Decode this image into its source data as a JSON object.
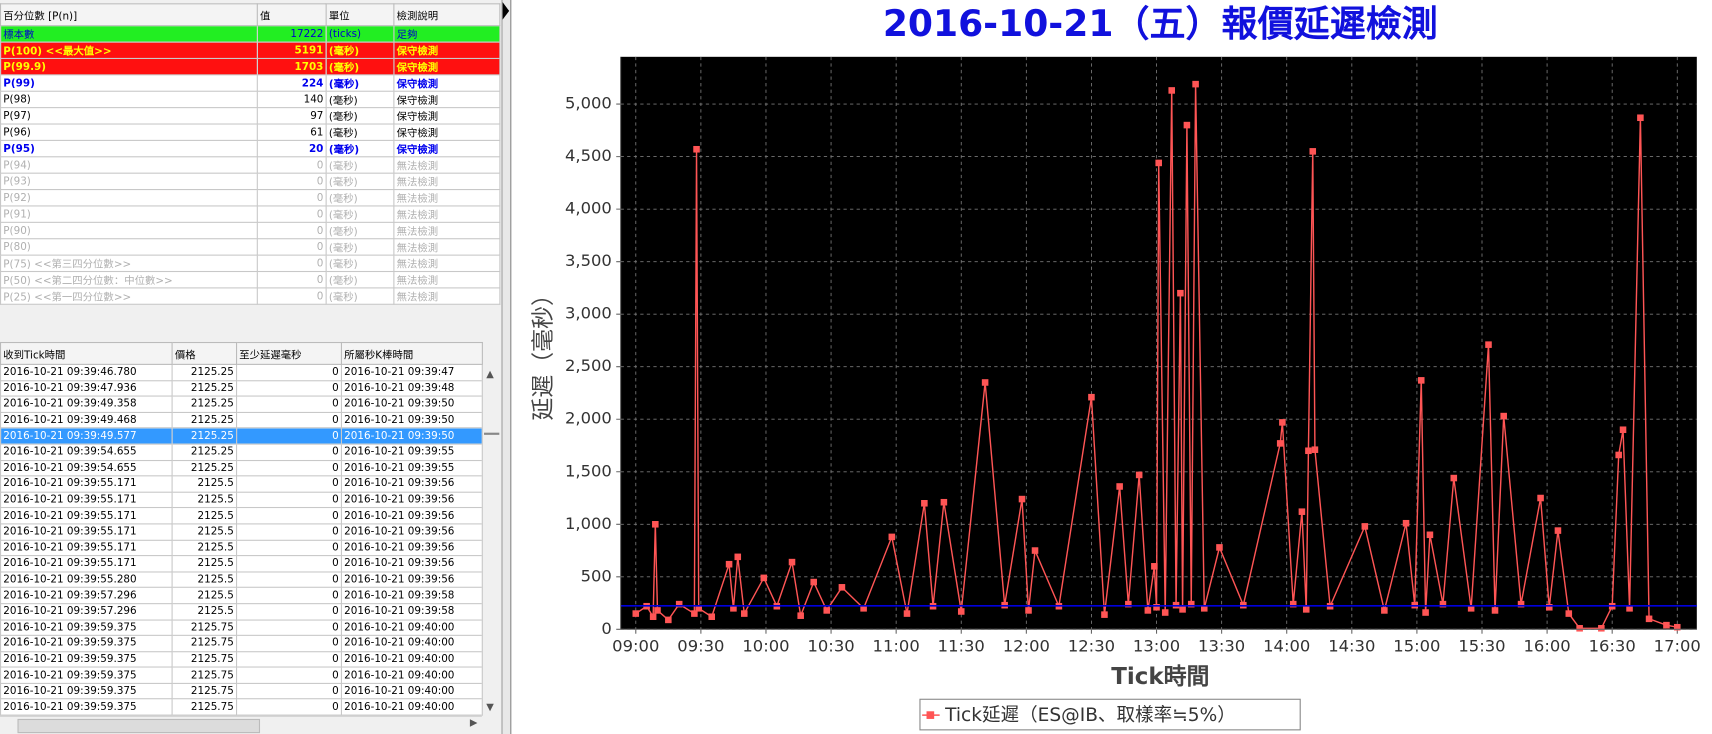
{
  "percentile_table": {
    "header": [
      "百分位數 [P(n)]",
      "值",
      "單位",
      "檢測說明"
    ],
    "rows": [
      {
        "cells": [
          "標本數",
          17222,
          "(ticks)",
          "足夠"
        ],
        "bg": "#22ee22",
        "fg": "#0000cc",
        "bold": false
      },
      {
        "cells": [
          "P(100)  <<最大值>>",
          5191,
          "(毫秒)",
          "保守檢測"
        ],
        "bg": "#ff1010",
        "fg": "#ffff00",
        "bold": true
      },
      {
        "cells": [
          "P(99.9)",
          1703,
          "(毫秒)",
          "保守檢測"
        ],
        "bg": "#ff1010",
        "fg": "#ffff00",
        "bold": true
      },
      {
        "cells": [
          "P(99)",
          224,
          "(毫秒)",
          "保守檢測"
        ],
        "bg": "#ffffff",
        "fg": "#0000ee",
        "bold": true
      },
      {
        "cells": [
          "P(98)",
          140,
          "(毫秒)",
          "保守檢測"
        ],
        "bg": "#ffffff",
        "fg": "#000000",
        "bold": false
      },
      {
        "cells": [
          "P(97)",
          97,
          "(毫秒)",
          "保守檢測"
        ],
        "bg": "#ffffff",
        "fg": "#000000",
        "bold": false
      },
      {
        "cells": [
          "P(96)",
          61,
          "(毫秒)",
          "保守檢測"
        ],
        "bg": "#ffffff",
        "fg": "#000000",
        "bold": false
      },
      {
        "cells": [
          "P(95)",
          20,
          "(毫秒)",
          "保守檢測"
        ],
        "bg": "#ffffff",
        "fg": "#0000ee",
        "bold": true
      },
      {
        "cells": [
          "P(94)",
          0,
          "(毫秒)",
          "無法檢測"
        ],
        "bg": "#ffffff",
        "fg": "#b0b0b0",
        "bold": false
      },
      {
        "cells": [
          "P(93)",
          0,
          "(毫秒)",
          "無法檢測"
        ],
        "bg": "#ffffff",
        "fg": "#b0b0b0",
        "bold": false
      },
      {
        "cells": [
          "P(92)",
          0,
          "(毫秒)",
          "無法檢測"
        ],
        "bg": "#ffffff",
        "fg": "#b0b0b0",
        "bold": false
      },
      {
        "cells": [
          "P(91)",
          0,
          "(毫秒)",
          "無法檢測"
        ],
        "bg": "#ffffff",
        "fg": "#b0b0b0",
        "bold": false
      },
      {
        "cells": [
          "P(90)",
          0,
          "(毫秒)",
          "無法檢測"
        ],
        "bg": "#ffffff",
        "fg": "#b0b0b0",
        "bold": false
      },
      {
        "cells": [
          "P(80)",
          0,
          "(毫秒)",
          "無法檢測"
        ],
        "bg": "#ffffff",
        "fg": "#b0b0b0",
        "bold": false
      },
      {
        "cells": [
          "P(75)  <<第三四分位數>>",
          0,
          "(毫秒)",
          "無法檢測"
        ],
        "bg": "#ffffff",
        "fg": "#b0b0b0",
        "bold": false
      },
      {
        "cells": [
          "P(50)  <<第二四分位數：中位數>>",
          0,
          "(毫秒)",
          "無法檢測"
        ],
        "bg": "#ffffff",
        "fg": "#b0b0b0",
        "bold": false
      },
      {
        "cells": [
          "P(25)  <<第一四分位數>>",
          0,
          "(毫秒)",
          "無法檢測"
        ],
        "bg": "#ffffff",
        "fg": "#b0b0b0",
        "bold": false
      }
    ]
  },
  "tick_table": {
    "header": [
      "收到Tick時間",
      "價格",
      "至少延遲毫秒",
      "所屬秒K棒時間"
    ],
    "selected_row": 4,
    "rows": [
      [
        "2016-10-21 09:39:46.780",
        2125.25,
        0,
        "2016-10-21 09:39:47"
      ],
      [
        "2016-10-21 09:39:47.936",
        2125.25,
        0,
        "2016-10-21 09:39:48"
      ],
      [
        "2016-10-21 09:39:49.358",
        2125.25,
        0,
        "2016-10-21 09:39:50"
      ],
      [
        "2016-10-21 09:39:49.468",
        2125.25,
        0,
        "2016-10-21 09:39:50"
      ],
      [
        "2016-10-21 09:39:49.577",
        2125.25,
        0,
        "2016-10-21 09:39:50"
      ],
      [
        "2016-10-21 09:39:54.655",
        2125.25,
        0,
        "2016-10-21 09:39:55"
      ],
      [
        "2016-10-21 09:39:54.655",
        2125.25,
        0,
        "2016-10-21 09:39:55"
      ],
      [
        "2016-10-21 09:39:55.171",
        2125.5,
        0,
        "2016-10-21 09:39:56"
      ],
      [
        "2016-10-21 09:39:55.171",
        2125.5,
        0,
        "2016-10-21 09:39:56"
      ],
      [
        "2016-10-21 09:39:55.171",
        2125.5,
        0,
        "2016-10-21 09:39:56"
      ],
      [
        "2016-10-21 09:39:55.171",
        2125.5,
        0,
        "2016-10-21 09:39:56"
      ],
      [
        "2016-10-21 09:39:55.171",
        2125.5,
        0,
        "2016-10-21 09:39:56"
      ],
      [
        "2016-10-21 09:39:55.171",
        2125.5,
        0,
        "2016-10-21 09:39:56"
      ],
      [
        "2016-10-21 09:39:55.280",
        2125.5,
        0,
        "2016-10-21 09:39:56"
      ],
      [
        "2016-10-21 09:39:57.296",
        2125.5,
        0,
        "2016-10-21 09:39:58"
      ],
      [
        "2016-10-21 09:39:57.296",
        2125.5,
        0,
        "2016-10-21 09:39:58"
      ],
      [
        "2016-10-21 09:39:59.375",
        2125.75,
        0,
        "2016-10-21 09:40:00"
      ],
      [
        "2016-10-21 09:39:59.375",
        2125.75,
        0,
        "2016-10-21 09:40:00"
      ],
      [
        "2016-10-21 09:39:59.375",
        2125.75,
        0,
        "2016-10-21 09:40:00"
      ],
      [
        "2016-10-21 09:39:59.375",
        2125.75,
        0,
        "2016-10-21 09:40:00"
      ],
      [
        "2016-10-21 09:39:59.375",
        2125.75,
        0,
        "2016-10-21 09:40:00"
      ],
      [
        "2016-10-21 09:39:59.375",
        2125.75,
        0,
        "2016-10-21 09:40:00"
      ]
    ]
  },
  "chart_data": {
    "type": "line",
    "title": "2016-10-21（五）報價延遲檢測",
    "x_label": "Tick時間",
    "y_label": "延遲（毫秒）",
    "xlim": [
      "08:53",
      "17:09"
    ],
    "xticks": [
      "09:00",
      "09:30",
      "10:00",
      "10:30",
      "11:00",
      "11:30",
      "12:00",
      "12:30",
      "13:00",
      "13:30",
      "14:00",
      "14:30",
      "15:00",
      "15:30",
      "16:00",
      "16:30",
      "17:00"
    ],
    "ylim": [
      0,
      5450
    ],
    "yticks": [
      0,
      500,
      {
        "value": 1000,
        "label": "1,000"
      },
      {
        "value": 1500,
        "label": "1,500"
      },
      {
        "value": 2000,
        "label": "2,000"
      },
      {
        "value": 2500,
        "label": "2,500"
      },
      {
        "value": 3000,
        "label": "3,000"
      },
      {
        "value": 3500,
        "label": "3,500"
      },
      {
        "value": 4000,
        "label": "4,000"
      },
      {
        "value": 4500,
        "label": "4,500"
      },
      {
        "value": 5000,
        "label": "5,000"
      }
    ],
    "grid": true,
    "background": "#000000",
    "reference_line": {
      "value": 224,
      "color": "#0000dd"
    },
    "x": [
      "09:00",
      "09:05",
      "09:08",
      "09:09",
      "09:10",
      "09:15",
      "09:20",
      "09:27",
      "09:28",
      "09:29",
      "09:35",
      "09:43",
      "09:45",
      "09:47",
      "09:50",
      "09:59",
      "10:05",
      "10:12",
      "10:16",
      "10:22",
      "10:28",
      "10:35",
      "10:45",
      "10:58",
      "11:05",
      "11:13",
      "11:17",
      "11:22",
      "11:30",
      "11:41",
      "11:50",
      "11:58",
      "12:01",
      "12:04",
      "12:15",
      "12:30",
      "12:36",
      "12:43",
      "12:47",
      "12:52",
      "12:56",
      "12:59",
      "13:00",
      "13:01",
      "13:04",
      "13:07",
      "13:09",
      "13:11",
      "13:12",
      "13:14",
      "13:16",
      "13:18",
      "13:22",
      "13:29",
      "13:40",
      "13:57",
      "13:58",
      "14:03",
      "14:07",
      "14:09",
      "14:10",
      "14:12",
      "14:13",
      "14:20",
      "14:36",
      "14:45",
      "14:55",
      "14:59",
      "15:02",
      "15:04",
      "15:06",
      "15:12",
      "15:17",
      "15:25",
      "15:33",
      "15:36",
      "15:40",
      "15:48",
      "15:57",
      "16:01",
      "16:05",
      "16:10",
      "16:15",
      "16:25",
      "16:30",
      "16:33",
      "16:35",
      "16:38",
      "16:43",
      "16:47",
      "16:55",
      "17:00"
    ],
    "series": [
      {
        "name": "Tick延遲（ES@IB、取樣率≒5%）",
        "color": "#ff5555",
        "values": [
          150,
          220,
          120,
          1000,
          180,
          90,
          240,
          150,
          4570,
          200,
          120,
          620,
          200,
          690,
          150,
          490,
          220,
          640,
          130,
          450,
          180,
          400,
          200,
          880,
          150,
          1200,
          220,
          1210,
          170,
          2350,
          230,
          1240,
          180,
          750,
          220,
          2210,
          140,
          1360,
          240,
          1470,
          180,
          600,
          210,
          4440,
          160,
          5130,
          230,
          3200,
          190,
          4800,
          240,
          5190,
          200,
          780,
          230,
          1770,
          1970,
          240,
          1120,
          190,
          1700,
          4550,
          1710,
          220,
          980,
          180,
          1010,
          230,
          2370,
          160,
          900,
          240,
          1440,
          200,
          2710,
          180,
          2030,
          240,
          1250,
          210,
          940,
          150,
          10,
          10,
          220,
          1660,
          1900,
          200,
          4870,
          100,
          40,
          20
        ]
      }
    ]
  }
}
